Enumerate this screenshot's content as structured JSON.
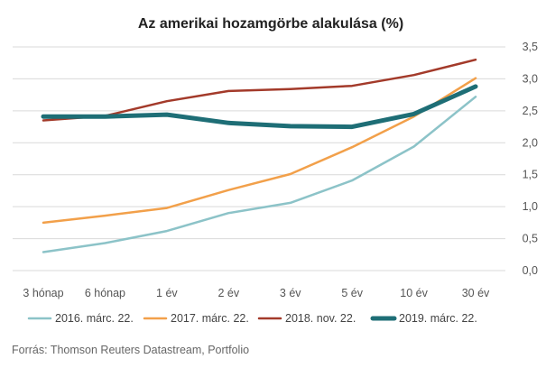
{
  "chart_data": {
    "type": "line",
    "title": "Az amerikai hozamgörbe alakulása (%)",
    "categories": [
      "3 hónap",
      "6 hónap",
      "1 év",
      "2 év",
      "3 év",
      "5 év",
      "10 év",
      "30 év"
    ],
    "y_ticks": [
      "0,0",
      "0,5",
      "1,0",
      "1,5",
      "2,0",
      "2,5",
      "3,0",
      "3,5"
    ],
    "ylim": [
      0,
      3.5
    ],
    "grid": true,
    "y_axis_position": "right",
    "legend_position": "bottom",
    "series": [
      {
        "name": "2016. márc. 22.",
        "color": "#8cc3c8",
        "width": 2.5,
        "values": [
          0.29,
          0.43,
          0.62,
          0.9,
          1.06,
          1.41,
          1.94,
          2.72
        ]
      },
      {
        "name": "2017. márc. 22.",
        "color": "#f2a04a",
        "width": 2.5,
        "values": [
          0.75,
          0.86,
          0.98,
          1.26,
          1.51,
          1.93,
          2.41,
          3.01
        ]
      },
      {
        "name": "2018. nov. 22.",
        "color": "#a33a2a",
        "width": 2.5,
        "values": [
          2.35,
          2.42,
          2.65,
          2.81,
          2.84,
          2.89,
          3.06,
          3.3
        ]
      },
      {
        "name": "2019. márc. 22.",
        "color": "#1e6e76",
        "width": 5,
        "values": [
          2.41,
          2.41,
          2.44,
          2.31,
          2.26,
          2.25,
          2.45,
          2.88
        ]
      }
    ]
  },
  "source": "Forrás: Thomson Reuters Datastream, Portfolio"
}
